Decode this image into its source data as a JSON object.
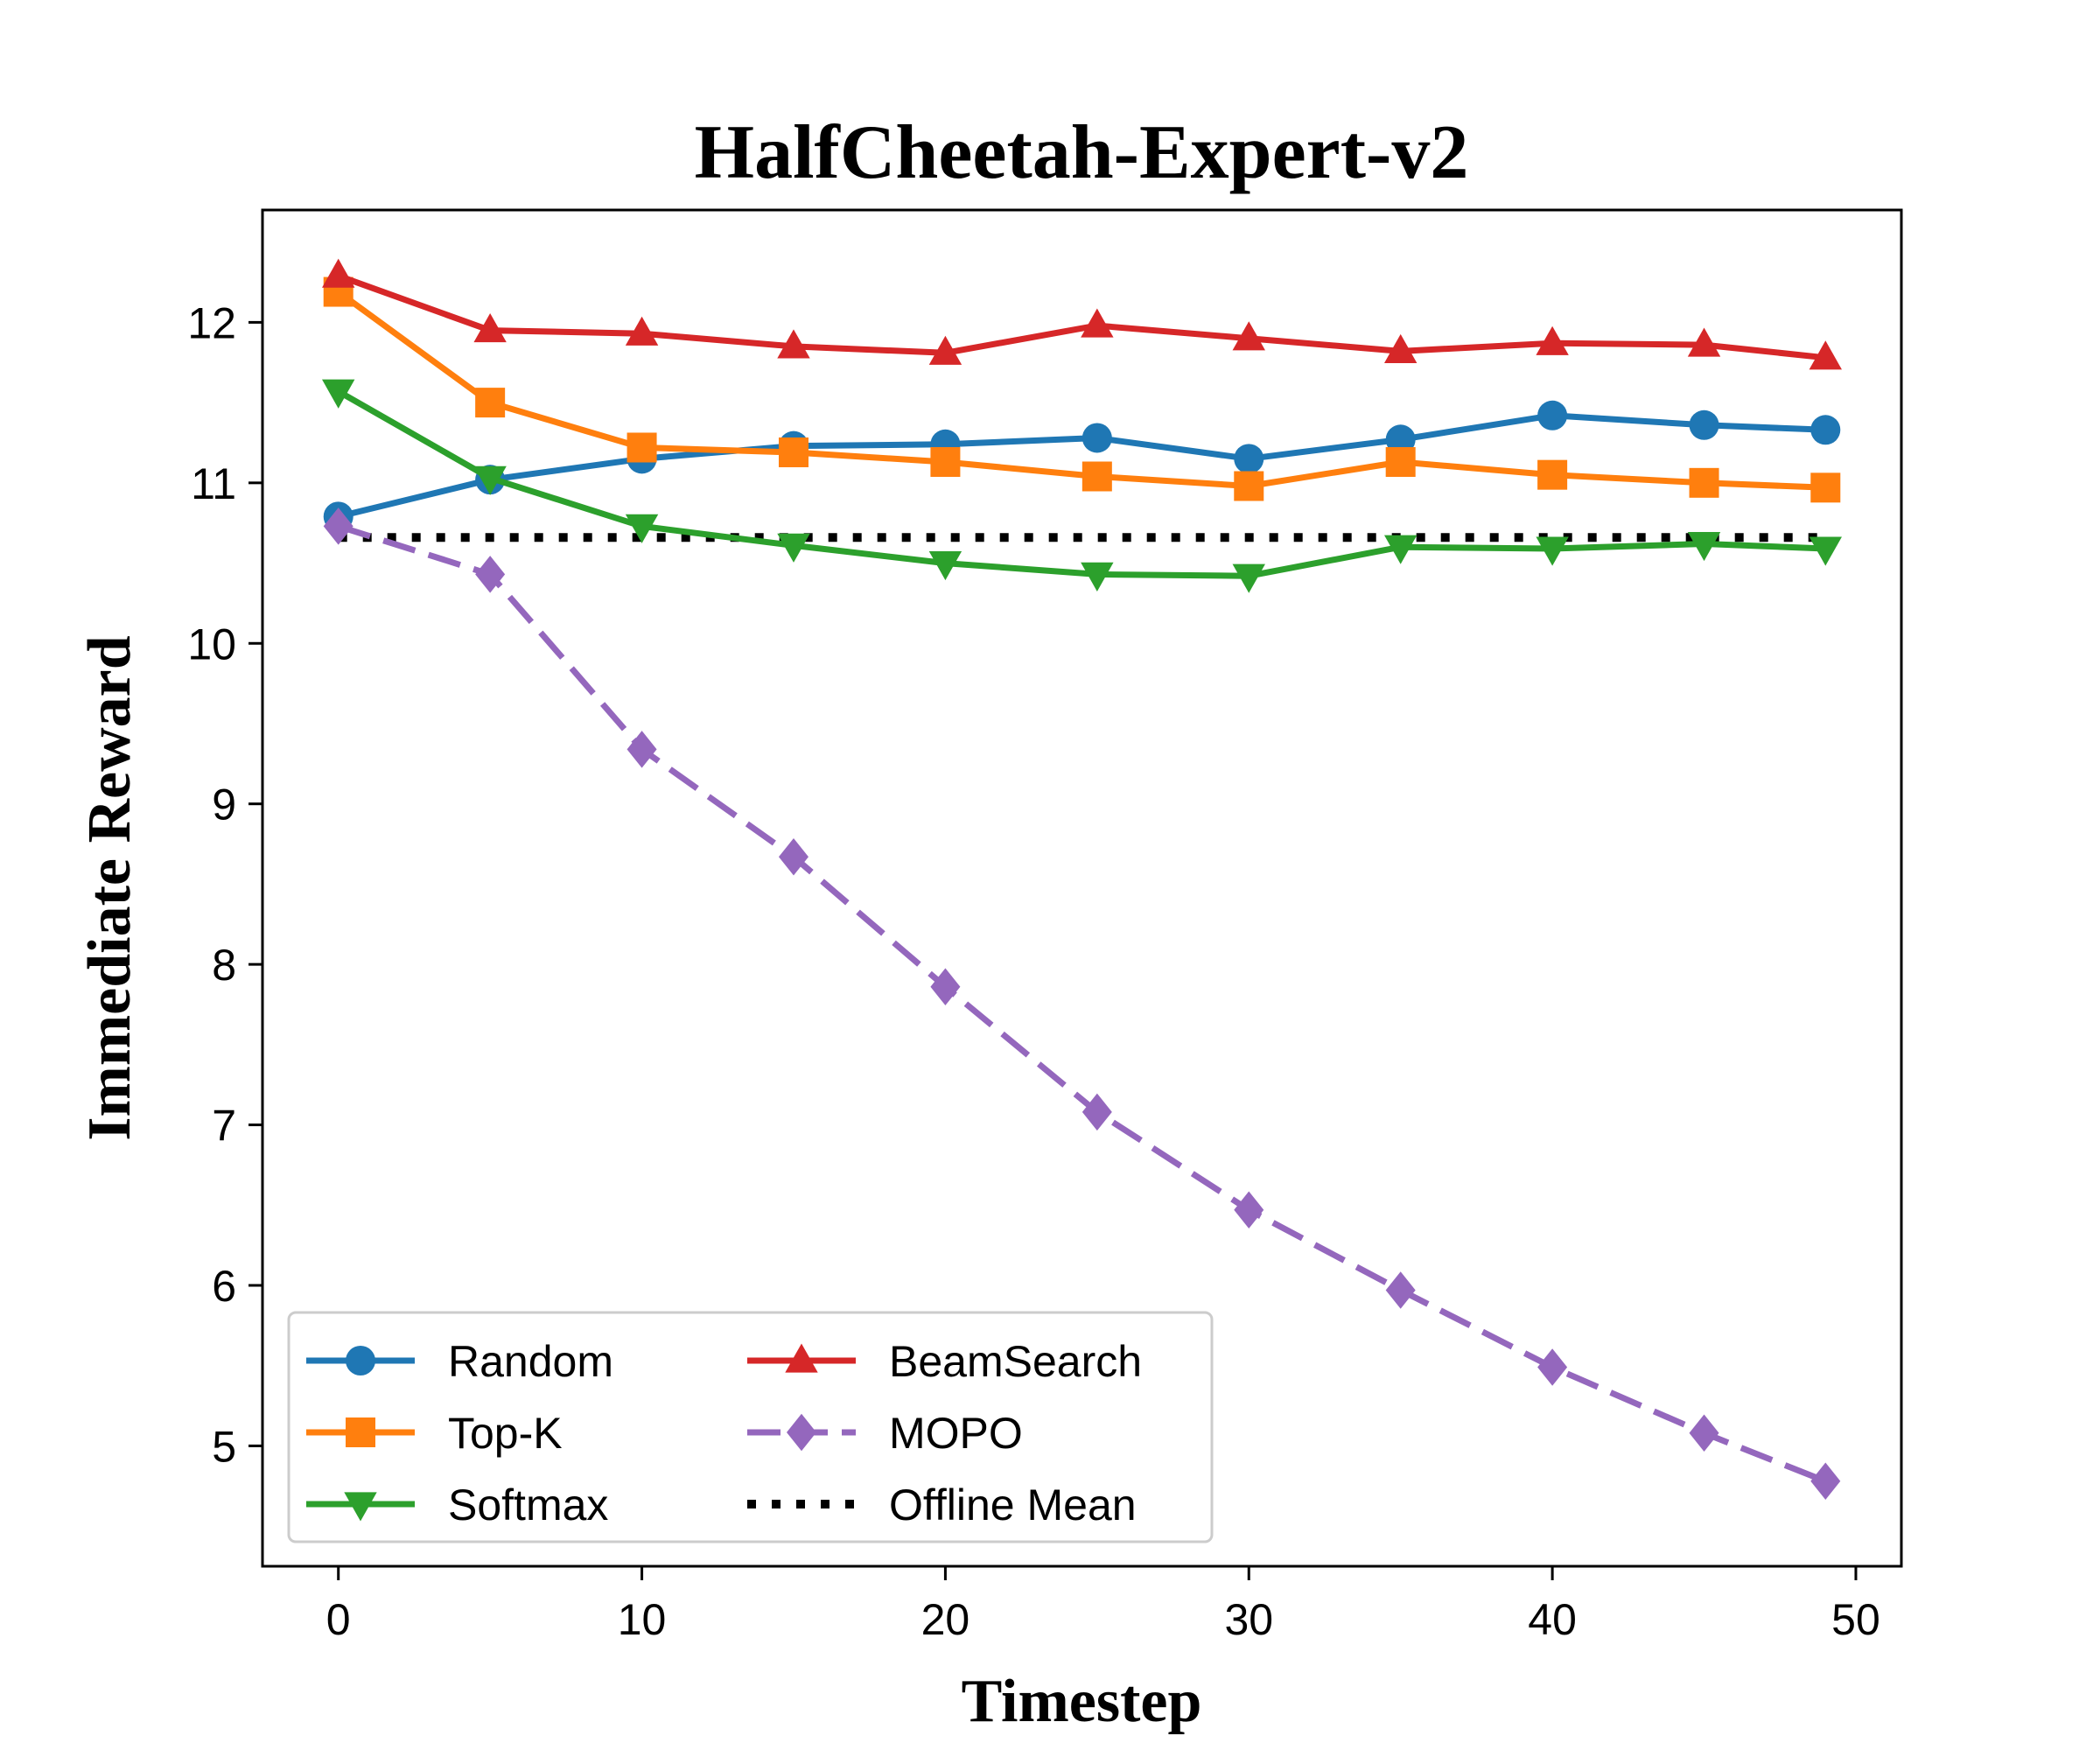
{
  "chart_data": {
    "type": "line",
    "title": "HalfCheetah-Expert-v2",
    "xlabel": "Timestep",
    "ylabel": "Immediate Reward",
    "xlim": [
      -2.5,
      51.5
    ],
    "ylim": [
      4.25,
      12.7
    ],
    "xticks": [
      0,
      10,
      20,
      30,
      40,
      50
    ],
    "yticks": [
      5,
      6,
      7,
      8,
      9,
      10,
      11,
      12
    ],
    "x": [
      0,
      5,
      10,
      15,
      20,
      25,
      30,
      35,
      40,
      45,
      49
    ],
    "legend": {
      "position": "lower-left",
      "columns": 2
    },
    "series": [
      {
        "name": "Random",
        "color": "#1f77b4",
        "marker": "circle",
        "linestyle": "solid",
        "values": [
          10.79,
          11.02,
          11.15,
          11.23,
          11.24,
          11.28,
          11.15,
          11.27,
          11.42,
          11.36,
          11.33
        ]
      },
      {
        "name": "Top-K",
        "color": "#ff7f0e",
        "marker": "square",
        "linestyle": "solid",
        "values": [
          12.19,
          11.5,
          11.22,
          11.19,
          11.13,
          11.04,
          10.98,
          11.13,
          11.05,
          11.0,
          10.97
        ]
      },
      {
        "name": "Softmax",
        "color": "#2ca02c",
        "marker": "triangle-down",
        "linestyle": "solid",
        "values": [
          11.57,
          11.03,
          10.73,
          10.61,
          10.5,
          10.43,
          10.42,
          10.6,
          10.59,
          10.62,
          10.59
        ]
      },
      {
        "name": "BeamSearch",
        "color": "#d62728",
        "marker": "triangle-up",
        "linestyle": "solid",
        "values": [
          12.29,
          11.95,
          11.93,
          11.85,
          11.81,
          11.98,
          11.9,
          11.82,
          11.87,
          11.86,
          11.78
        ]
      },
      {
        "name": "MOPO",
        "color": "#9467bd",
        "marker": "diamond",
        "linestyle": "dashed",
        "values": [
          10.73,
          10.43,
          9.34,
          8.67,
          7.86,
          7.08,
          6.47,
          5.97,
          5.49,
          5.08,
          4.78
        ]
      },
      {
        "name": "Offline Mean",
        "color": "#000000",
        "marker": "none",
        "linestyle": "dotted",
        "values": [
          10.66,
          10.66,
          10.66,
          10.66,
          10.66,
          10.66,
          10.66,
          10.66,
          10.66,
          10.66,
          10.66
        ]
      }
    ]
  }
}
